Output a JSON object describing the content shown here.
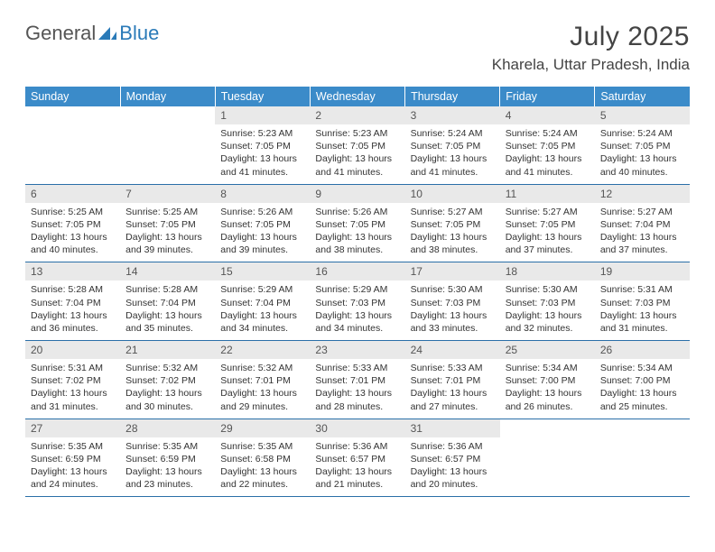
{
  "logo": {
    "text_general": "General",
    "text_blue": "Blue"
  },
  "title": "July 2025",
  "location": "Kharela, Uttar Pradesh, India",
  "colors": {
    "header_bg": "#3b8bc9",
    "header_text": "#ffffff",
    "daynum_bg": "#e9e9e9",
    "row_border": "#2a6fa8",
    "body_text": "#333333",
    "logo_blue": "#2a7ab8"
  },
  "typography": {
    "title_fontsize": 30,
    "location_fontsize": 17,
    "dayheader_fontsize": 12.5,
    "daynum_fontsize": 12,
    "body_fontsize": 10.5
  },
  "day_headers": [
    "Sunday",
    "Monday",
    "Tuesday",
    "Wednesday",
    "Thursday",
    "Friday",
    "Saturday"
  ],
  "weeks": [
    [
      {
        "n": "",
        "sunrise": "",
        "sunset": "",
        "daylight1": "",
        "daylight2": ""
      },
      {
        "n": "",
        "sunrise": "",
        "sunset": "",
        "daylight1": "",
        "daylight2": ""
      },
      {
        "n": "1",
        "sunrise": "Sunrise: 5:23 AM",
        "sunset": "Sunset: 7:05 PM",
        "daylight1": "Daylight: 13 hours",
        "daylight2": "and 41 minutes."
      },
      {
        "n": "2",
        "sunrise": "Sunrise: 5:23 AM",
        "sunset": "Sunset: 7:05 PM",
        "daylight1": "Daylight: 13 hours",
        "daylight2": "and 41 minutes."
      },
      {
        "n": "3",
        "sunrise": "Sunrise: 5:24 AM",
        "sunset": "Sunset: 7:05 PM",
        "daylight1": "Daylight: 13 hours",
        "daylight2": "and 41 minutes."
      },
      {
        "n": "4",
        "sunrise": "Sunrise: 5:24 AM",
        "sunset": "Sunset: 7:05 PM",
        "daylight1": "Daylight: 13 hours",
        "daylight2": "and 41 minutes."
      },
      {
        "n": "5",
        "sunrise": "Sunrise: 5:24 AM",
        "sunset": "Sunset: 7:05 PM",
        "daylight1": "Daylight: 13 hours",
        "daylight2": "and 40 minutes."
      }
    ],
    [
      {
        "n": "6",
        "sunrise": "Sunrise: 5:25 AM",
        "sunset": "Sunset: 7:05 PM",
        "daylight1": "Daylight: 13 hours",
        "daylight2": "and 40 minutes."
      },
      {
        "n": "7",
        "sunrise": "Sunrise: 5:25 AM",
        "sunset": "Sunset: 7:05 PM",
        "daylight1": "Daylight: 13 hours",
        "daylight2": "and 39 minutes."
      },
      {
        "n": "8",
        "sunrise": "Sunrise: 5:26 AM",
        "sunset": "Sunset: 7:05 PM",
        "daylight1": "Daylight: 13 hours",
        "daylight2": "and 39 minutes."
      },
      {
        "n": "9",
        "sunrise": "Sunrise: 5:26 AM",
        "sunset": "Sunset: 7:05 PM",
        "daylight1": "Daylight: 13 hours",
        "daylight2": "and 38 minutes."
      },
      {
        "n": "10",
        "sunrise": "Sunrise: 5:27 AM",
        "sunset": "Sunset: 7:05 PM",
        "daylight1": "Daylight: 13 hours",
        "daylight2": "and 38 minutes."
      },
      {
        "n": "11",
        "sunrise": "Sunrise: 5:27 AM",
        "sunset": "Sunset: 7:05 PM",
        "daylight1": "Daylight: 13 hours",
        "daylight2": "and 37 minutes."
      },
      {
        "n": "12",
        "sunrise": "Sunrise: 5:27 AM",
        "sunset": "Sunset: 7:04 PM",
        "daylight1": "Daylight: 13 hours",
        "daylight2": "and 37 minutes."
      }
    ],
    [
      {
        "n": "13",
        "sunrise": "Sunrise: 5:28 AM",
        "sunset": "Sunset: 7:04 PM",
        "daylight1": "Daylight: 13 hours",
        "daylight2": "and 36 minutes."
      },
      {
        "n": "14",
        "sunrise": "Sunrise: 5:28 AM",
        "sunset": "Sunset: 7:04 PM",
        "daylight1": "Daylight: 13 hours",
        "daylight2": "and 35 minutes."
      },
      {
        "n": "15",
        "sunrise": "Sunrise: 5:29 AM",
        "sunset": "Sunset: 7:04 PM",
        "daylight1": "Daylight: 13 hours",
        "daylight2": "and 34 minutes."
      },
      {
        "n": "16",
        "sunrise": "Sunrise: 5:29 AM",
        "sunset": "Sunset: 7:03 PM",
        "daylight1": "Daylight: 13 hours",
        "daylight2": "and 34 minutes."
      },
      {
        "n": "17",
        "sunrise": "Sunrise: 5:30 AM",
        "sunset": "Sunset: 7:03 PM",
        "daylight1": "Daylight: 13 hours",
        "daylight2": "and 33 minutes."
      },
      {
        "n": "18",
        "sunrise": "Sunrise: 5:30 AM",
        "sunset": "Sunset: 7:03 PM",
        "daylight1": "Daylight: 13 hours",
        "daylight2": "and 32 minutes."
      },
      {
        "n": "19",
        "sunrise": "Sunrise: 5:31 AM",
        "sunset": "Sunset: 7:03 PM",
        "daylight1": "Daylight: 13 hours",
        "daylight2": "and 31 minutes."
      }
    ],
    [
      {
        "n": "20",
        "sunrise": "Sunrise: 5:31 AM",
        "sunset": "Sunset: 7:02 PM",
        "daylight1": "Daylight: 13 hours",
        "daylight2": "and 31 minutes."
      },
      {
        "n": "21",
        "sunrise": "Sunrise: 5:32 AM",
        "sunset": "Sunset: 7:02 PM",
        "daylight1": "Daylight: 13 hours",
        "daylight2": "and 30 minutes."
      },
      {
        "n": "22",
        "sunrise": "Sunrise: 5:32 AM",
        "sunset": "Sunset: 7:01 PM",
        "daylight1": "Daylight: 13 hours",
        "daylight2": "and 29 minutes."
      },
      {
        "n": "23",
        "sunrise": "Sunrise: 5:33 AM",
        "sunset": "Sunset: 7:01 PM",
        "daylight1": "Daylight: 13 hours",
        "daylight2": "and 28 minutes."
      },
      {
        "n": "24",
        "sunrise": "Sunrise: 5:33 AM",
        "sunset": "Sunset: 7:01 PM",
        "daylight1": "Daylight: 13 hours",
        "daylight2": "and 27 minutes."
      },
      {
        "n": "25",
        "sunrise": "Sunrise: 5:34 AM",
        "sunset": "Sunset: 7:00 PM",
        "daylight1": "Daylight: 13 hours",
        "daylight2": "and 26 minutes."
      },
      {
        "n": "26",
        "sunrise": "Sunrise: 5:34 AM",
        "sunset": "Sunset: 7:00 PM",
        "daylight1": "Daylight: 13 hours",
        "daylight2": "and 25 minutes."
      }
    ],
    [
      {
        "n": "27",
        "sunrise": "Sunrise: 5:35 AM",
        "sunset": "Sunset: 6:59 PM",
        "daylight1": "Daylight: 13 hours",
        "daylight2": "and 24 minutes."
      },
      {
        "n": "28",
        "sunrise": "Sunrise: 5:35 AM",
        "sunset": "Sunset: 6:59 PM",
        "daylight1": "Daylight: 13 hours",
        "daylight2": "and 23 minutes."
      },
      {
        "n": "29",
        "sunrise": "Sunrise: 5:35 AM",
        "sunset": "Sunset: 6:58 PM",
        "daylight1": "Daylight: 13 hours",
        "daylight2": "and 22 minutes."
      },
      {
        "n": "30",
        "sunrise": "Sunrise: 5:36 AM",
        "sunset": "Sunset: 6:57 PM",
        "daylight1": "Daylight: 13 hours",
        "daylight2": "and 21 minutes."
      },
      {
        "n": "31",
        "sunrise": "Sunrise: 5:36 AM",
        "sunset": "Sunset: 6:57 PM",
        "daylight1": "Daylight: 13 hours",
        "daylight2": "and 20 minutes."
      },
      {
        "n": "",
        "sunrise": "",
        "sunset": "",
        "daylight1": "",
        "daylight2": ""
      },
      {
        "n": "",
        "sunrise": "",
        "sunset": "",
        "daylight1": "",
        "daylight2": ""
      }
    ]
  ]
}
